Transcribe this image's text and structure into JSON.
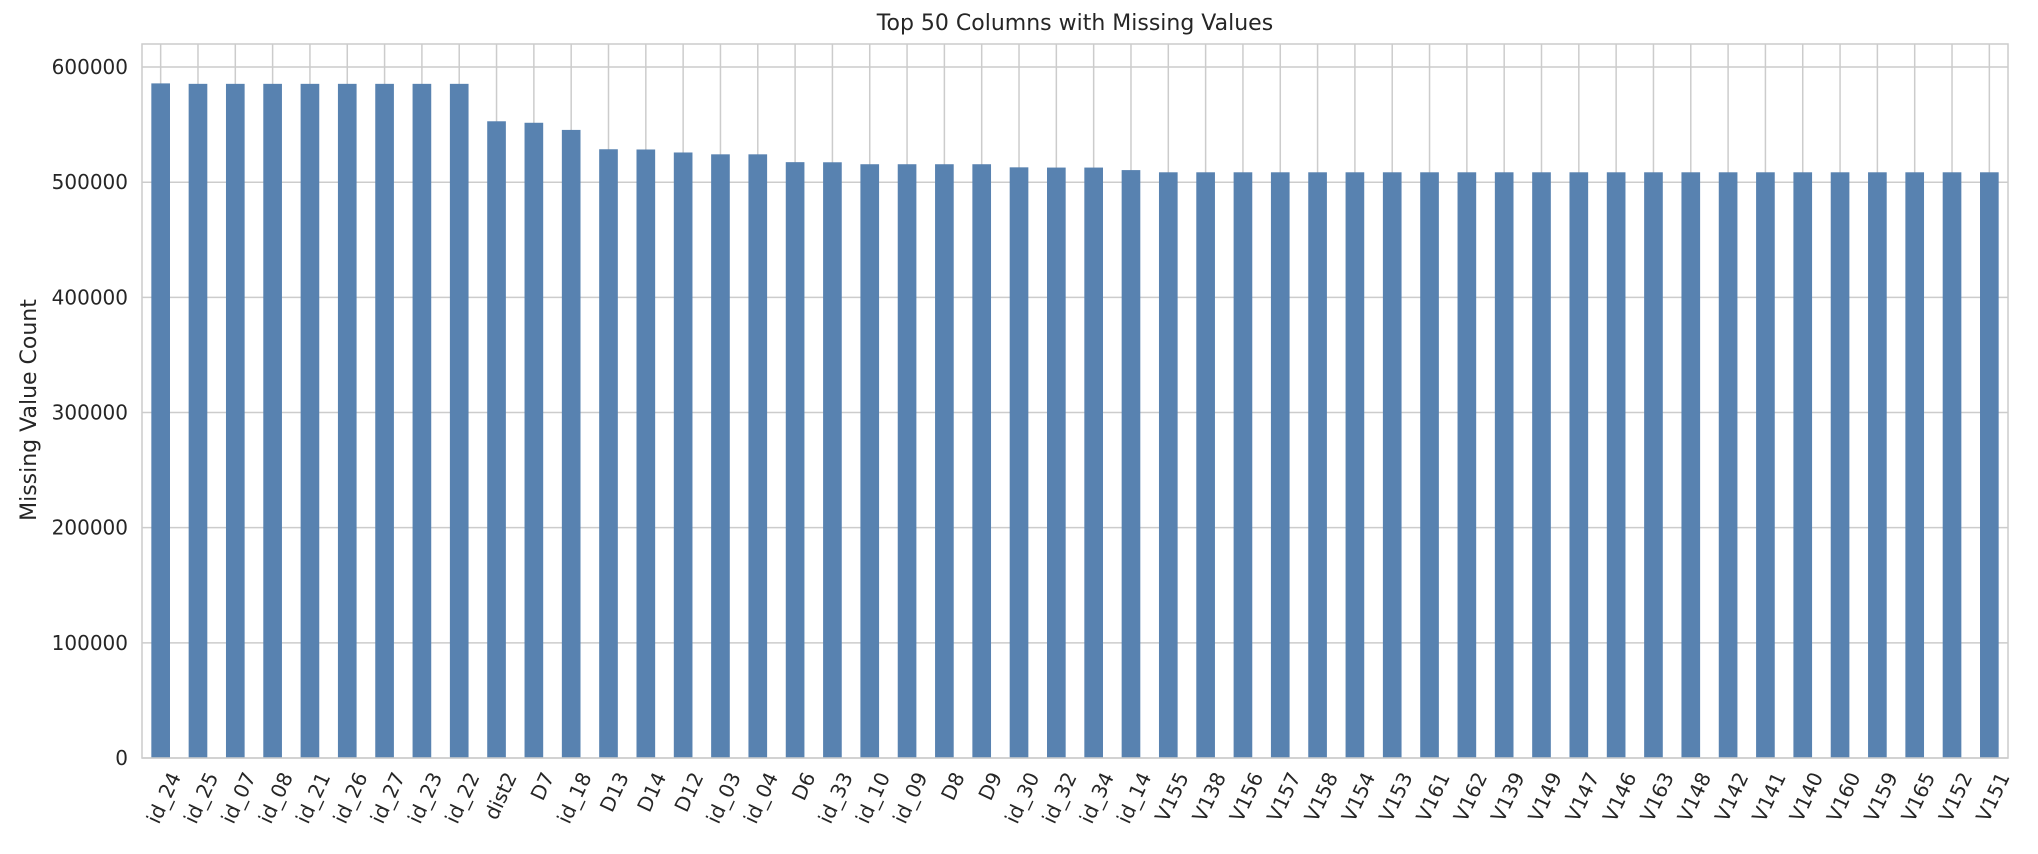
{
  "chart_data": {
    "type": "bar",
    "title": "Top 50 Columns with Missing Values",
    "xlabel": "",
    "ylabel": "Missing Value Count",
    "ylim": [
      0,
      620000
    ],
    "yticks": [
      0,
      100000,
      200000,
      300000,
      400000,
      500000,
      600000
    ],
    "grid": true,
    "bar_color": "#5882b0",
    "categories": [
      "id_24",
      "id_25",
      "id_07",
      "id_08",
      "id_21",
      "id_26",
      "id_27",
      "id_23",
      "id_22",
      "dist2",
      "D7",
      "id_18",
      "D13",
      "D14",
      "D12",
      "id_03",
      "id_04",
      "D6",
      "id_33",
      "id_10",
      "id_09",
      "D8",
      "D9",
      "id_30",
      "id_32",
      "id_34",
      "id_14",
      "V155",
      "V138",
      "V156",
      "V157",
      "V158",
      "V154",
      "V153",
      "V161",
      "V162",
      "V139",
      "V149",
      "V147",
      "V146",
      "V163",
      "V148",
      "V142",
      "V141",
      "V140",
      "V160",
      "V159",
      "V165",
      "V152",
      "V151"
    ],
    "values": [
      585800,
      585400,
      585400,
      585400,
      585400,
      585400,
      585400,
      585400,
      585400,
      552900,
      551600,
      545400,
      528600,
      528400,
      525800,
      524200,
      524200,
      517400,
      517300,
      515600,
      515600,
      515600,
      515600,
      512900,
      512700,
      512700,
      510500,
      508600,
      508600,
      508600,
      508600,
      508600,
      508600,
      508600,
      508600,
      508600,
      508600,
      508600,
      508600,
      508600,
      508600,
      508600,
      508600,
      508600,
      508600,
      508600,
      508600,
      508600,
      508600,
      508600
    ]
  }
}
